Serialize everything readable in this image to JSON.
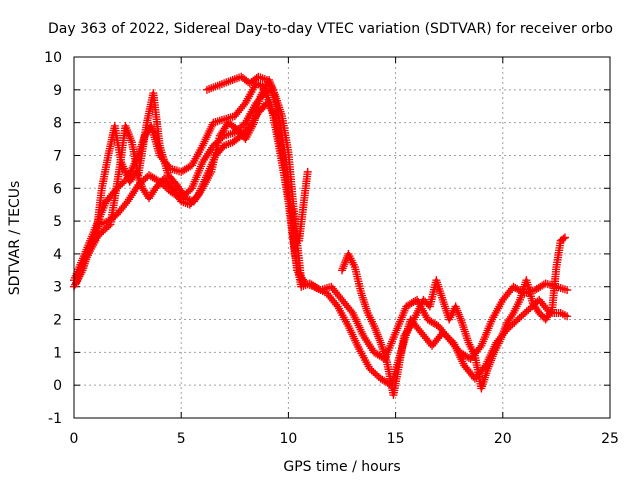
{
  "chart_data": {
    "type": "scatter",
    "title": "Day 363 of 2022, Sidereal Day-to-day VTEC variation (SDTVAR) for receiver orbo",
    "xlabel": "GPS time / hours",
    "ylabel": "SDTVAR / TECUs",
    "xlim": [
      0,
      25
    ],
    "ylim": [
      -1,
      10
    ],
    "xticks": [
      "0",
      "5",
      "10",
      "15",
      "20",
      "25"
    ],
    "yticks": [
      "-1",
      "0",
      "1",
      "2",
      "3",
      "4",
      "5",
      "6",
      "7",
      "8",
      "9",
      "10"
    ],
    "grid": true,
    "marker": "+",
    "color": "#ff0000",
    "series": [
      {
        "points": [
          [
            0.0,
            3.2
          ],
          [
            0.5,
            4.0
          ],
          [
            1.0,
            4.8
          ],
          [
            1.5,
            5.6
          ],
          [
            2.0,
            6.0
          ],
          [
            2.5,
            6.3
          ],
          [
            3.0,
            7.0
          ],
          [
            3.3,
            7.6
          ],
          [
            3.6,
            7.9
          ],
          [
            4.0,
            7.0
          ],
          [
            4.5,
            6.6
          ],
          [
            5.0,
            6.5
          ],
          [
            5.5,
            6.7
          ],
          [
            6.0,
            7.3
          ],
          [
            6.5,
            8.0
          ],
          [
            7.0,
            8.1
          ],
          [
            7.5,
            8.2
          ],
          [
            8.0,
            8.6
          ],
          [
            8.5,
            9.2
          ],
          [
            8.8,
            9.1
          ],
          [
            9.2,
            8.5
          ],
          [
            9.5,
            7.5
          ],
          [
            9.8,
            6.4
          ],
          [
            10.0,
            5.6
          ],
          [
            10.3,
            4.0
          ],
          [
            10.6,
            3.0
          ],
          [
            11.0,
            3.1
          ],
          [
            11.5,
            2.9
          ],
          [
            12.0,
            3.0
          ],
          [
            12.5,
            2.6
          ],
          [
            13.0,
            2.2
          ],
          [
            13.5,
            1.5
          ],
          [
            14.0,
            1.0
          ],
          [
            14.5,
            0.8
          ],
          [
            15.0,
            1.6
          ],
          [
            15.5,
            2.4
          ],
          [
            16.0,
            2.6
          ],
          [
            16.5,
            2.0
          ],
          [
            17.0,
            1.8
          ],
          [
            17.5,
            1.4
          ],
          [
            18.0,
            1.0
          ],
          [
            18.5,
            0.8
          ],
          [
            19.0,
            1.2
          ],
          [
            19.5,
            2.0
          ],
          [
            20.0,
            2.6
          ],
          [
            20.5,
            3.0
          ],
          [
            21.0,
            2.8
          ],
          [
            21.5,
            2.9
          ],
          [
            22.0,
            3.1
          ],
          [
            22.5,
            3.0
          ],
          [
            23.0,
            2.9
          ]
        ]
      },
      {
        "points": [
          [
            0.0,
            3.0
          ],
          [
            0.4,
            3.5
          ],
          [
            0.8,
            4.3
          ],
          [
            1.2,
            4.9
          ],
          [
            1.6,
            5.0
          ],
          [
            2.0,
            5.2
          ],
          [
            2.5,
            5.6
          ],
          [
            3.0,
            6.1
          ],
          [
            3.5,
            6.4
          ],
          [
            4.0,
            6.2
          ],
          [
            4.5,
            5.9
          ],
          [
            5.0,
            5.7
          ],
          [
            5.5,
            6.0
          ],
          [
            6.0,
            6.8
          ],
          [
            6.5,
            7.3
          ],
          [
            7.0,
            7.6
          ],
          [
            7.5,
            7.7
          ],
          [
            8.0,
            8.0
          ],
          [
            8.5,
            8.6
          ],
          [
            9.0,
            9.0
          ],
          [
            9.3,
            8.9
          ],
          [
            9.6,
            8.0
          ],
          [
            9.9,
            6.8
          ],
          [
            10.1,
            5.3
          ],
          [
            10.4,
            3.5
          ],
          [
            10.8,
            3.1
          ],
          [
            11.2,
            3.0
          ],
          [
            11.8,
            2.8
          ],
          [
            12.3,
            2.4
          ],
          [
            12.8,
            1.8
          ],
          [
            13.3,
            1.1
          ],
          [
            13.8,
            0.5
          ],
          [
            14.3,
            0.2
          ],
          [
            14.8,
            0.0
          ],
          [
            15.2,
            0.9
          ],
          [
            15.7,
            2.0
          ],
          [
            16.2,
            1.6
          ],
          [
            16.7,
            1.2
          ],
          [
            17.2,
            1.6
          ],
          [
            17.7,
            1.3
          ],
          [
            18.2,
            0.6
          ],
          [
            18.7,
            0.2
          ],
          [
            19.2,
            0.6
          ],
          [
            19.7,
            1.3
          ],
          [
            20.2,
            1.7
          ],
          [
            20.7,
            2.0
          ],
          [
            21.2,
            2.3
          ],
          [
            21.7,
            2.6
          ],
          [
            22.2,
            2.2
          ],
          [
            22.7,
            2.2
          ],
          [
            23.0,
            2.1
          ]
        ]
      },
      {
        "points": [
          [
            0.1,
            3.1
          ],
          [
            0.6,
            3.9
          ],
          [
            1.0,
            4.4
          ],
          [
            1.3,
            6.0
          ],
          [
            1.6,
            7.0
          ],
          [
            1.9,
            7.9
          ],
          [
            2.2,
            6.8
          ],
          [
            2.6,
            6.2
          ],
          [
            2.9,
            6.5
          ],
          [
            3.2,
            6.0
          ],
          [
            3.5,
            5.7
          ],
          [
            3.8,
            6.0
          ],
          [
            4.2,
            6.3
          ],
          [
            4.6,
            6.0
          ],
          [
            5.0,
            5.6
          ],
          [
            5.4,
            5.5
          ],
          [
            5.8,
            5.8
          ],
          [
            6.2,
            6.4
          ],
          [
            6.6,
            7.0
          ],
          [
            7.0,
            7.3
          ],
          [
            7.4,
            7.4
          ],
          [
            7.8,
            7.6
          ],
          [
            8.2,
            7.9
          ],
          [
            8.6,
            8.3
          ],
          [
            9.0,
            8.6
          ],
          [
            9.4,
            8.2
          ],
          [
            9.7,
            7.0
          ],
          [
            10.0,
            5.8
          ],
          [
            10.2,
            5.2
          ],
          [
            10.5,
            4.4
          ],
          [
            10.8,
            6.0
          ],
          [
            10.9,
            6.5
          ]
        ]
      },
      {
        "points": [
          [
            0.2,
            3.4
          ],
          [
            0.7,
            4.2
          ],
          [
            1.2,
            4.6
          ],
          [
            1.7,
            4.9
          ],
          [
            2.1,
            6.5
          ],
          [
            2.4,
            7.9
          ],
          [
            2.7,
            7.4
          ],
          [
            3.0,
            6.4
          ],
          [
            3.4,
            8.0
          ],
          [
            3.7,
            8.9
          ],
          [
            4.0,
            7.3
          ],
          [
            4.4,
            6.4
          ],
          [
            4.8,
            6.1
          ],
          [
            5.2,
            5.7
          ],
          [
            5.6,
            5.6
          ],
          [
            6.0,
            6.0
          ],
          [
            6.4,
            6.5
          ],
          [
            6.8,
            7.6
          ],
          [
            7.2,
            8.0
          ],
          [
            7.6,
            7.8
          ],
          [
            8.0,
            7.5
          ],
          [
            8.4,
            8.0
          ],
          [
            8.7,
            8.8
          ],
          [
            9.1,
            9.3
          ],
          [
            9.4,
            8.8
          ],
          [
            9.7,
            8.2
          ],
          [
            10.0,
            7.1
          ],
          [
            10.3,
            5.0
          ],
          [
            10.6,
            3.2
          ]
        ]
      },
      {
        "points": [
          [
            6.2,
            9.0
          ],
          [
            6.6,
            9.1
          ],
          [
            7.0,
            9.2
          ],
          [
            7.4,
            9.3
          ],
          [
            7.8,
            9.4
          ],
          [
            8.2,
            9.2
          ],
          [
            8.6,
            9.4
          ],
          [
            9.0,
            9.3
          ],
          [
            9.3,
            9.0
          ]
        ]
      },
      {
        "points": [
          [
            12.5,
            3.5
          ],
          [
            12.8,
            4.0
          ],
          [
            13.1,
            3.6
          ],
          [
            13.4,
            2.8
          ],
          [
            13.7,
            2.2
          ],
          [
            14.0,
            1.8
          ],
          [
            14.3,
            1.3
          ],
          [
            14.6,
            0.7
          ],
          [
            14.9,
            -0.3
          ],
          [
            15.1,
            0.4
          ],
          [
            15.4,
            1.5
          ],
          [
            15.7,
            1.8
          ],
          [
            16.0,
            2.2
          ],
          [
            16.3,
            2.6
          ],
          [
            16.6,
            2.4
          ],
          [
            16.9,
            3.2
          ],
          [
            17.2,
            2.6
          ],
          [
            17.5,
            2.0
          ],
          [
            17.8,
            2.4
          ],
          [
            18.1,
            1.9
          ],
          [
            18.4,
            1.3
          ],
          [
            18.7,
            0.9
          ],
          [
            19.0,
            -0.1
          ],
          [
            19.3,
            0.5
          ],
          [
            19.6,
            1.0
          ],
          [
            19.9,
            1.4
          ],
          [
            20.2,
            1.9
          ],
          [
            20.5,
            2.2
          ],
          [
            20.8,
            2.6
          ],
          [
            21.1,
            3.2
          ],
          [
            21.4,
            2.5
          ],
          [
            21.7,
            2.2
          ],
          [
            22.0,
            2.0
          ],
          [
            22.3,
            2.3
          ],
          [
            22.5,
            3.6
          ],
          [
            22.7,
            4.4
          ],
          [
            22.9,
            4.5
          ]
        ]
      }
    ]
  }
}
